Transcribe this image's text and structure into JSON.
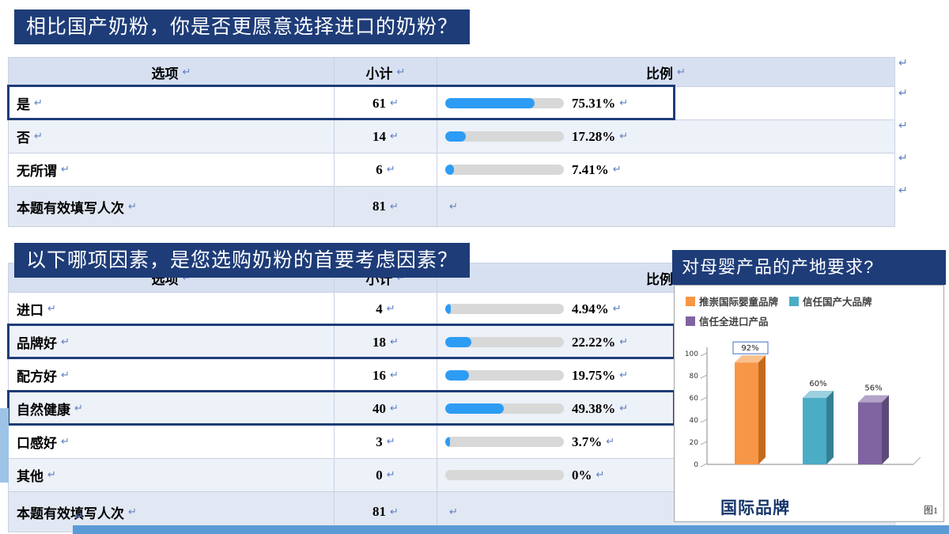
{
  "banners": {
    "q1": "相比国产奶粉，你是否更愿意选择进口的奶粉？",
    "q2": "以下哪项因素，是您选购奶粉的首要考虑因素？",
    "q3": "对母婴产品的产地要求?"
  },
  "icons": {
    "return_mark": "↵"
  },
  "colors": {
    "banner": "#1E3C78",
    "bar_fill": "#2D9CF4",
    "highlight_outline": "#1E3C78",
    "table_header_bg": "#D7E0F1",
    "left_strip": "#9DC3E6",
    "bottom_strip": "#5B9BD5"
  },
  "table1": {
    "headers": [
      "选项",
      "小计",
      "比例"
    ],
    "rows": [
      {
        "option": "是",
        "count": "61",
        "pct": "75.31%",
        "value": 75.31,
        "highlight": true
      },
      {
        "option": "否",
        "count": "14",
        "pct": "17.28%",
        "value": 17.28
      },
      {
        "option": "无所谓",
        "count": "6",
        "pct": "7.41%",
        "value": 7.41
      },
      {
        "option": "本题有效填写人次",
        "count": "81",
        "pct": "",
        "footer": true
      }
    ]
  },
  "table2": {
    "headers": [
      "选项",
      "小计",
      "比例"
    ],
    "rows": [
      {
        "option": "进口",
        "count": "4",
        "pct": "4.94%",
        "value": 4.94
      },
      {
        "option": "品牌好",
        "count": "18",
        "pct": "22.22%",
        "value": 22.22,
        "highlight": true
      },
      {
        "option": "配方好",
        "count": "16",
        "pct": "19.75%",
        "value": 19.75
      },
      {
        "option": "自然健康",
        "count": "40",
        "pct": "49.38%",
        "value": 49.38,
        "highlight": true
      },
      {
        "option": "口感好",
        "count": "3",
        "pct": "3.7%",
        "value": 3.7
      },
      {
        "option": "其他",
        "count": "0",
        "pct": "0%",
        "value": 0
      },
      {
        "option": "本题有效填写人次",
        "count": "81",
        "pct": "",
        "footer": true
      }
    ]
  },
  "chart_data": {
    "type": "bar",
    "title": "对母婴产品的产地要求?",
    "categories": [
      "推崇国际婴童品牌",
      "信任国产大品牌",
      "信任全进口产品"
    ],
    "values": [
      92,
      60,
      56
    ],
    "labels": [
      "92%",
      "60%",
      "56%"
    ],
    "colors": [
      "#F79646",
      "#4BACC6",
      "#8064A2"
    ],
    "colors_dark": [
      "#C56A1D",
      "#347F95",
      "#5E4A79"
    ],
    "colors_light": [
      "#FBC08C",
      "#9CD0DE",
      "#B3A3C8"
    ],
    "ylim": [
      0,
      100
    ],
    "yticks": [
      0,
      20,
      40,
      60,
      80,
      100
    ],
    "legend_position": "top",
    "grid": false,
    "caption": "国际品牌",
    "figure_label": "图1"
  }
}
